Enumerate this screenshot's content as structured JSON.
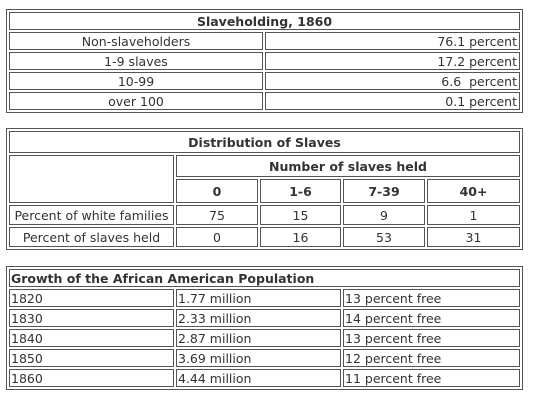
{
  "slaveholding": {
    "title": "Slaveholding, 1860",
    "rows": [
      {
        "label": "Non-slaveholders",
        "value": "76.1 percent"
      },
      {
        "label": "1-9 slaves",
        "value": "17.2 percent"
      },
      {
        "label": "10-99",
        "value": "6.6  percent"
      },
      {
        "label": "over 100",
        "value": "0.1 percent"
      }
    ]
  },
  "distribution": {
    "title": "Distribution of Slaves",
    "group_header": "Number of slaves held",
    "columns": [
      "0",
      "1-6",
      "7-39",
      "40+"
    ],
    "rows": [
      {
        "label": "Percent of white families",
        "values": [
          "75",
          "15",
          "9",
          "1"
        ]
      },
      {
        "label": "Percent of slaves held",
        "values": [
          "0",
          "16",
          "53",
          "31"
        ]
      }
    ]
  },
  "growth": {
    "title": "Growth of the African American Population",
    "rows": [
      {
        "year": "1820",
        "population": "1.77 million",
        "free": "13 percent free"
      },
      {
        "year": "1830",
        "population": "2.33 million",
        "free": "14 percent free"
      },
      {
        "year": "1840",
        "population": "2.87 million",
        "free": "13 percent free"
      },
      {
        "year": "1850",
        "population": "3.69 million",
        "free": "12 percent free"
      },
      {
        "year": "1860",
        "population": "4.44 million",
        "free": "11 percent free"
      }
    ]
  }
}
